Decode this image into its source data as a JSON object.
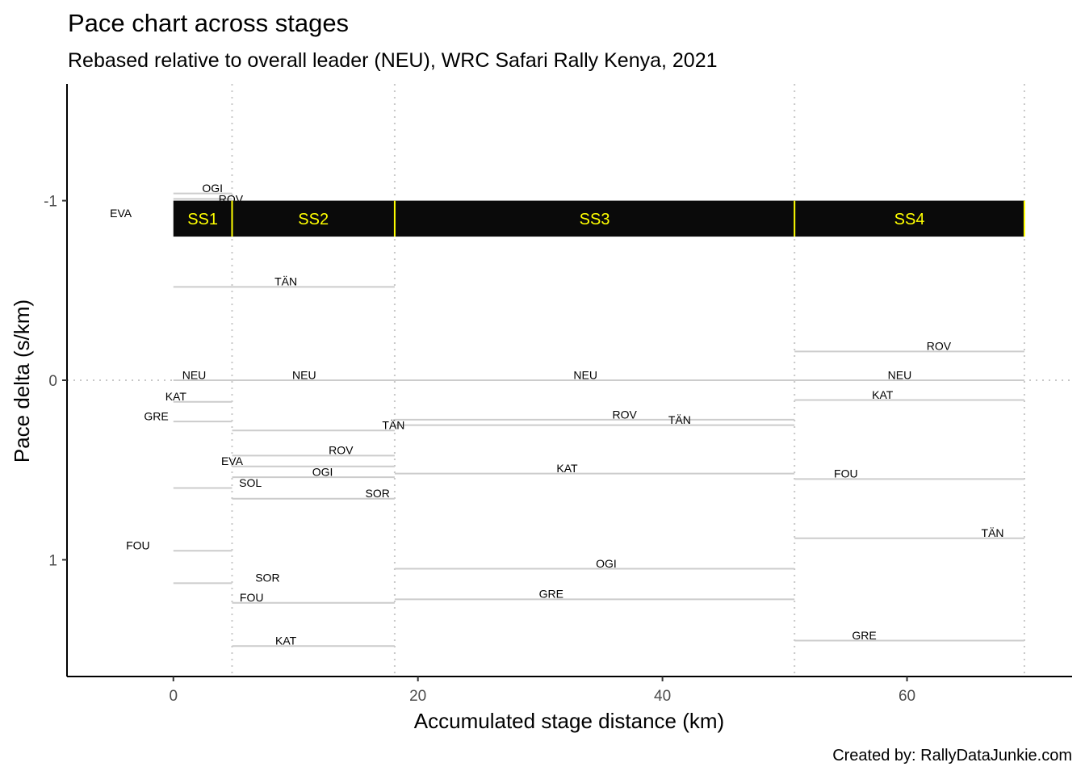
{
  "chart_data": {
    "type": "line",
    "title": "Pace chart across stages",
    "subtitle": "Rebased relative to overall leader (NEU), WRC Safari Rally Kenya, 2021",
    "xlabel": "Accumulated stage distance (km)",
    "ylabel": "Pace delta (s/km)",
    "caption": "Created by: RallyDataJunkie.com",
    "xlim": [
      -8.7,
      73.5
    ],
    "ylim": [
      1.65,
      -1.65
    ],
    "y_reversed": true,
    "x_ticks": [
      0,
      20,
      40,
      60
    ],
    "y_ticks": [
      -1,
      0,
      1
    ],
    "grid": false,
    "reference_line": 0,
    "stage_boundaries": [
      4.8,
      18.1,
      50.8,
      69.6
    ],
    "stages": [
      {
        "label": "SS1",
        "start": 0,
        "end": 4.8
      },
      {
        "label": "SS2",
        "start": 4.8,
        "end": 18.1
      },
      {
        "label": "SS3",
        "start": 18.1,
        "end": 50.8
      },
      {
        "label": "SS4",
        "start": 50.8,
        "end": 69.6
      }
    ],
    "stage_bar": {
      "y_top": -1.0,
      "y_bottom": -0.8,
      "fill": "#0a0a0a",
      "text_color": "#ffff00"
    },
    "segments": [
      {
        "stage": "SS1",
        "x0": 0,
        "x1": 4.8,
        "points": [
          {
            "label": "OGI",
            "y": -1.04,
            "lx": 3.2,
            "ly": -1.07
          },
          {
            "label": "ROV",
            "y": -1.01,
            "lx": 4.7,
            "ly": -1.01
          },
          {
            "label": "EVA",
            "y": -0.52,
            "lx": -4.3,
            "ly": -0.93
          },
          {
            "label": "NEU",
            "y": 0.0,
            "lx": 1.7,
            "ly": -0.03
          },
          {
            "label": "KAT",
            "y": 0.12,
            "lx": 0.2,
            "ly": 0.09
          },
          {
            "label": "GRE",
            "y": 0.23,
            "lx": -1.4,
            "ly": 0.2
          },
          {
            "label": "SOL",
            "y": 0.6,
            "lx": 6.3,
            "ly": 0.57
          },
          {
            "label": "FOU",
            "y": 0.95,
            "lx": -2.9,
            "ly": 0.92
          },
          {
            "label": "SOR",
            "y": 1.13,
            "lx": 7.7,
            "ly": 1.1
          }
        ]
      },
      {
        "stage": "SS2",
        "x0": 4.8,
        "x1": 18.1,
        "points": [
          {
            "label": "TÄN",
            "y": -0.52,
            "lx": 9.2,
            "ly": -0.55
          },
          {
            "label": "NEU",
            "y": 0.0,
            "lx": 10.7,
            "ly": -0.03
          },
          {
            "label": "TÄN",
            "y": 0.28,
            "lx": 18.0,
            "ly": 0.25
          },
          {
            "label": "ROV",
            "y": 0.42,
            "lx": 13.7,
            "ly": 0.39
          },
          {
            "label": "EVA",
            "y": 0.48,
            "lx": 4.8,
            "ly": 0.45
          },
          {
            "label": "OGI",
            "y": 0.54,
            "lx": 12.2,
            "ly": 0.51
          },
          {
            "label": "SOR",
            "y": 0.66,
            "lx": 16.7,
            "ly": 0.63
          },
          {
            "label": "FOU",
            "y": 1.24,
            "lx": 6.4,
            "ly": 1.21
          },
          {
            "label": "KAT",
            "y": 1.48,
            "lx": 9.2,
            "ly": 1.45
          }
        ]
      },
      {
        "stage": "SS3",
        "x0": 18.1,
        "x1": 50.8,
        "points": [
          {
            "label": "NEU",
            "y": 0.0,
            "lx": 33.7,
            "ly": -0.03
          },
          {
            "label": "ROV",
            "y": 0.22,
            "lx": 36.9,
            "ly": 0.19
          },
          {
            "label": "TÄN",
            "y": 0.25,
            "lx": 41.4,
            "ly": 0.22
          },
          {
            "label": "KAT",
            "y": 0.52,
            "lx": 32.2,
            "ly": 0.49
          },
          {
            "label": "OGI",
            "y": 1.05,
            "lx": 35.4,
            "ly": 1.02
          },
          {
            "label": "GRE",
            "y": 1.22,
            "lx": 30.9,
            "ly": 1.19
          }
        ]
      },
      {
        "stage": "SS4",
        "x0": 50.8,
        "x1": 69.6,
        "points": [
          {
            "label": "ROV",
            "y": -0.16,
            "lx": 62.6,
            "ly": -0.19
          },
          {
            "label": "NEU",
            "y": 0.0,
            "lx": 59.4,
            "ly": -0.03
          },
          {
            "label": "KAT",
            "y": 0.11,
            "lx": 58.0,
            "ly": 0.08
          },
          {
            "label": "FOU",
            "y": 0.55,
            "lx": 55.0,
            "ly": 0.52
          },
          {
            "label": "TÄN",
            "y": 0.88,
            "lx": 67.0,
            "ly": 0.85
          },
          {
            "label": "GRE",
            "y": 1.45,
            "lx": 56.5,
            "ly": 1.42
          }
        ]
      }
    ]
  }
}
